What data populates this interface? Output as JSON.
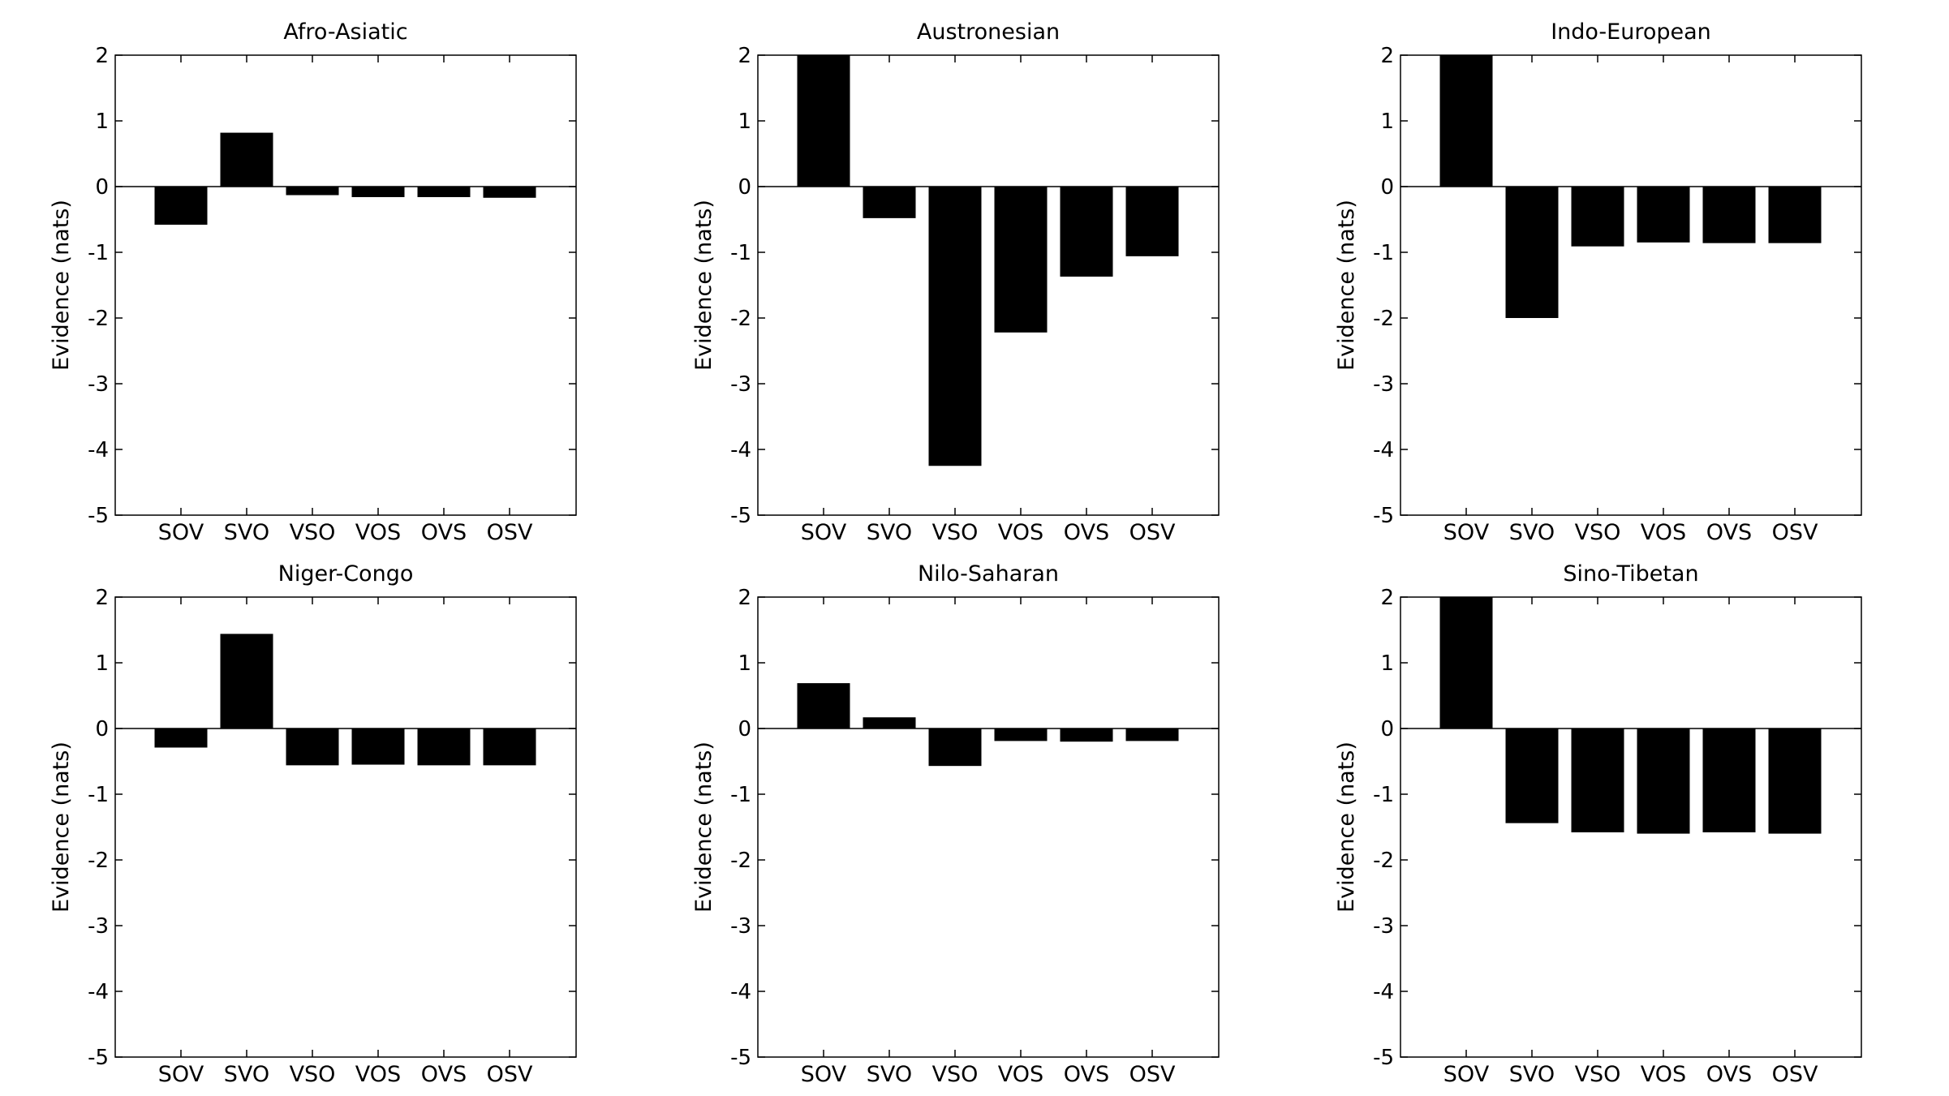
{
  "chart_data": [
    {
      "type": "bar",
      "title": "Afro-Asiatic",
      "categories": [
        "SOV",
        "SVO",
        "VSO",
        "VOS",
        "OVS",
        "OSV"
      ],
      "values": [
        -0.58,
        0.82,
        -0.13,
        -0.16,
        -0.16,
        -0.17
      ],
      "xlabel": "",
      "ylabel": "Evidence (nats)",
      "ylim": [
        -5,
        2
      ],
      "yticks": [
        "2",
        "1",
        "0",
        "-1",
        "-2",
        "-3",
        "-4",
        "-5"
      ],
      "grid": false
    },
    {
      "type": "bar",
      "title": "Austronesian",
      "categories": [
        "SOV",
        "SVO",
        "VSO",
        "VOS",
        "OVS",
        "OSV"
      ],
      "values": [
        2.0,
        -0.48,
        -4.25,
        -2.22,
        -1.37,
        -1.06
      ],
      "xlabel": "",
      "ylabel": "Evidence (nats)",
      "ylim": [
        -5,
        2
      ],
      "yticks": [
        "2",
        "1",
        "0",
        "-1",
        "-2",
        "-3",
        "-4",
        "-5"
      ],
      "grid": false
    },
    {
      "type": "bar",
      "title": "Indo-European",
      "categories": [
        "SOV",
        "SVO",
        "VSO",
        "VOS",
        "OVS",
        "OSV"
      ],
      "values": [
        2.0,
        -2.0,
        -0.91,
        -0.85,
        -0.86,
        -0.86
      ],
      "xlabel": "",
      "ylabel": "Evidence (nats)",
      "ylim": [
        -5,
        2
      ],
      "yticks": [
        "2",
        "1",
        "0",
        "-1",
        "-2",
        "-3",
        "-4",
        "-5"
      ],
      "grid": false
    },
    {
      "type": "bar",
      "title": "Niger-Congo",
      "categories": [
        "SOV",
        "SVO",
        "VSO",
        "VOS",
        "OVS",
        "OSV"
      ],
      "values": [
        -0.29,
        1.44,
        -0.56,
        -0.55,
        -0.56,
        -0.56
      ],
      "xlabel": "",
      "ylabel": "Evidence (nats)",
      "ylim": [
        -5,
        2
      ],
      "yticks": [
        "2",
        "1",
        "0",
        "-1",
        "-2",
        "-3",
        "-4",
        "-5"
      ],
      "grid": false
    },
    {
      "type": "bar",
      "title": "Nilo-Saharan",
      "categories": [
        "SOV",
        "SVO",
        "VSO",
        "VOS",
        "OVS",
        "OSV"
      ],
      "values": [
        0.69,
        0.17,
        -0.57,
        -0.19,
        -0.2,
        -0.19
      ],
      "xlabel": "",
      "ylabel": "Evidence (nats)",
      "ylim": [
        -5,
        2
      ],
      "yticks": [
        "2",
        "1",
        "0",
        "-1",
        "-2",
        "-3",
        "-4",
        "-5"
      ],
      "grid": false
    },
    {
      "type": "bar",
      "title": "Sino-Tibetan",
      "categories": [
        "SOV",
        "SVO",
        "VSO",
        "VOS",
        "OVS",
        "OSV"
      ],
      "values": [
        2.0,
        -1.44,
        -1.58,
        -1.6,
        -1.58,
        -1.6
      ],
      "xlabel": "",
      "ylabel": "Evidence (nats)",
      "ylim": [
        -5,
        2
      ],
      "yticks": [
        "2",
        "1",
        "0",
        "-1",
        "-2",
        "-3",
        "-4",
        "-5"
      ],
      "grid": false
    }
  ]
}
